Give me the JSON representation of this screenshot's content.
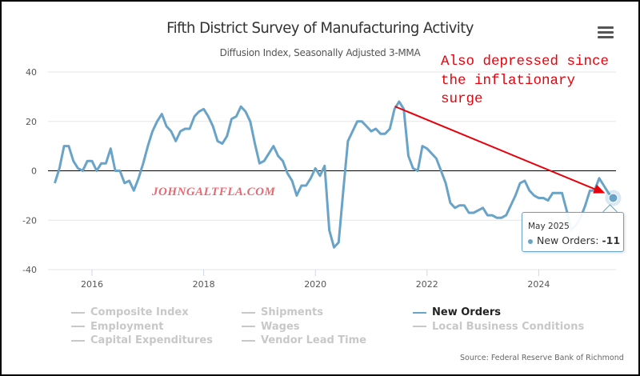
{
  "chart_data": {
    "type": "line",
    "title": "Fifth District Survey of Manufacturing Activity",
    "subtitle": "Diffusion Index, Seasonally Adjusted 3-MMA",
    "xlabel": "",
    "ylabel": "",
    "ylim": [
      -40,
      40
    ],
    "yticks": [
      40,
      20,
      0,
      -20,
      -40
    ],
    "xticks": [
      "2016",
      "2018",
      "2020",
      "2022",
      "2024"
    ],
    "grid": true,
    "x_start": "2015-05",
    "x_end": "2025-05",
    "series": [
      {
        "name": "New Orders",
        "color": "#6aa3c8",
        "visible": true,
        "values": [
          -5,
          1,
          10,
          10,
          4,
          1,
          0,
          4,
          4,
          0,
          3,
          3,
          9,
          0,
          0,
          -5,
          -4,
          -8,
          -3,
          3,
          10,
          16,
          20,
          23,
          18,
          16,
          12,
          16,
          17,
          17,
          22,
          24,
          25,
          22,
          18,
          12,
          11,
          14,
          21,
          22,
          26,
          24,
          20,
          11,
          3,
          4,
          7,
          10,
          6,
          4,
          -1,
          -4,
          -10,
          -6,
          -6,
          -3,
          1,
          -2,
          2,
          -24,
          -31,
          -29,
          -8,
          12,
          16,
          20,
          20,
          18,
          16,
          17,
          15,
          15,
          17,
          25,
          28,
          25,
          6,
          1,
          0,
          10,
          9,
          7,
          5,
          0,
          -5,
          -13,
          -15,
          -14,
          -14,
          -17,
          -17,
          -16,
          -15,
          -18,
          -18,
          -19,
          -19,
          -18,
          -14,
          -10,
          -5,
          -4,
          -8,
          -10,
          -11,
          -11,
          -12,
          -9,
          -9,
          -9,
          -16,
          -24,
          -22,
          -19,
          -14,
          -8,
          -8,
          -3,
          -6,
          -9,
          -11
        ]
      },
      {
        "name": "Composite Index",
        "visible": false
      },
      {
        "name": "Shipments",
        "visible": false
      },
      {
        "name": "Employment",
        "visible": false
      },
      {
        "name": "Wages",
        "visible": false
      },
      {
        "name": "Local Business Conditions",
        "visible": false
      },
      {
        "name": "Capital Expenditures",
        "visible": false
      },
      {
        "name": "Vendor Lead Time",
        "visible": false
      }
    ],
    "legend": {
      "placement": "bottom",
      "columns": [
        [
          "Composite Index",
          "Employment",
          "Capital Expenditures"
        ],
        [
          "Shipments",
          "Wages",
          "Vendor Lead Time"
        ],
        [
          "New Orders",
          "Local Business Conditions"
        ]
      ],
      "active": "New Orders"
    },
    "tooltip": {
      "date": "May 2025",
      "series": "New Orders",
      "label": "New Orders: ",
      "value": "-11"
    },
    "annotations": [
      {
        "text": "Also depressed since\nthe inflationary\nsurge",
        "color": "#e8000b",
        "arrow_from": "2021-09",
        "arrow_to": "2025-05"
      },
      {
        "text": "JOHNGALTFLA.COM",
        "color": "#e66a73"
      }
    ],
    "source": "Source: Federal Reserve Bank of Richmond"
  },
  "ui": {
    "menu_icon": "hamburger-icon"
  }
}
